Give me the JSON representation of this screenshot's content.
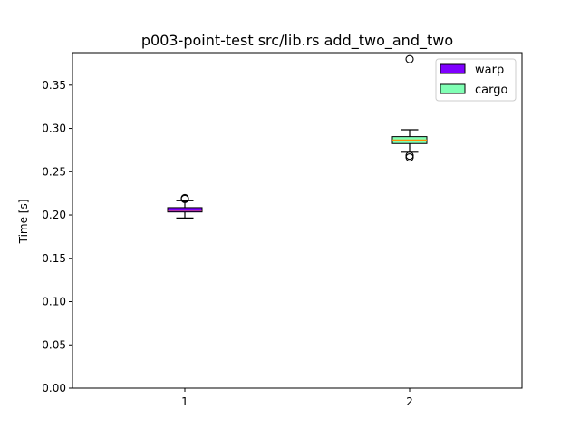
{
  "chart_data": {
    "type": "box",
    "title": "p003-point-test src/lib.rs add_two_and_two",
    "xlabel": "",
    "ylabel": "Time [s]",
    "xlim": [
      0.5,
      2.5
    ],
    "ylim": [
      0.0,
      0.3875
    ],
    "x_ticks": [
      "1",
      "2"
    ],
    "y_ticks": [
      "0.00",
      "0.05",
      "0.10",
      "0.15",
      "0.20",
      "0.25",
      "0.30",
      "0.35"
    ],
    "grid": false,
    "legend_position": "upper right",
    "series": [
      {
        "name": "warp",
        "color": "#7f00ff",
        "x": 1,
        "whisker_low": 0.1965,
        "q1": 0.2035,
        "median": 0.2055,
        "q3": 0.2085,
        "whisker_high": 0.2165,
        "outliers": [
          0.2185,
          0.2195
        ]
      },
      {
        "name": "cargo",
        "color": "#80ffb4",
        "x": 2,
        "whisker_low": 0.2725,
        "q1": 0.2825,
        "median": 0.2865,
        "q3": 0.2905,
        "whisker_high": 0.2985,
        "outliers": [
          0.2665,
          0.2685,
          0.38
        ]
      }
    ]
  }
}
